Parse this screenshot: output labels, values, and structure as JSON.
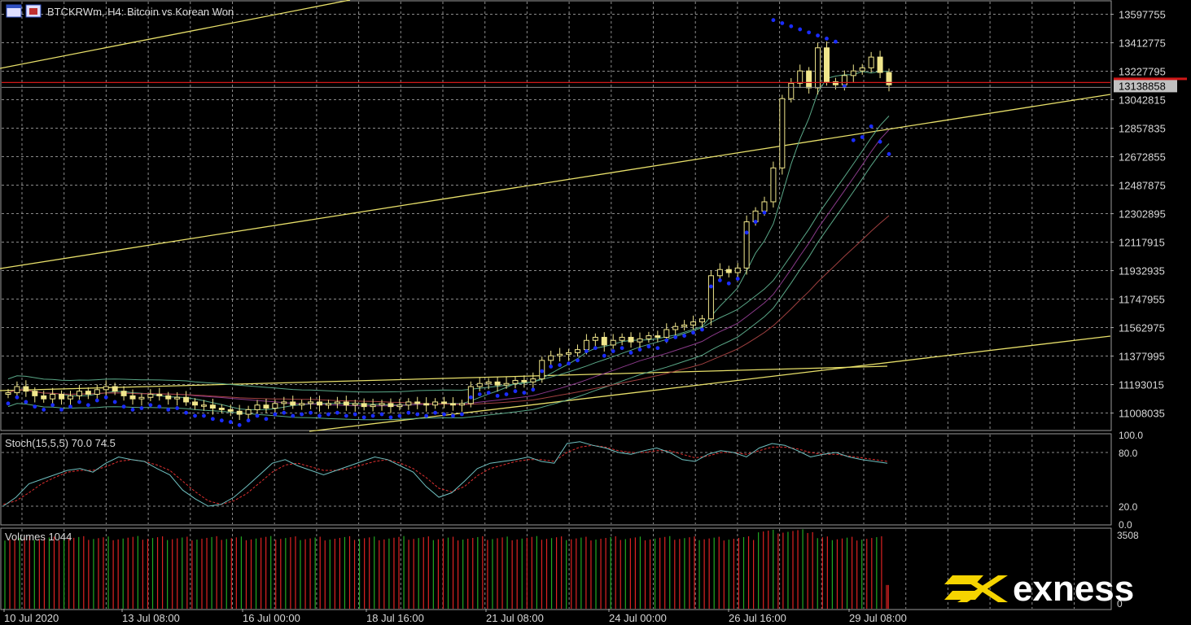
{
  "window": {
    "symbol_title": "BTCKRWm, H4:  Bitcoin vs Korean Won",
    "icons": [
      "chart-window-icon",
      "close-window-icon"
    ]
  },
  "brand": {
    "name": "exness",
    "logo_color": "#f5d400"
  },
  "colors": {
    "background": "#000000",
    "grid": "#8a8a8a",
    "candle": "#f0e68c",
    "parabolic_sar": "#1a2cff",
    "price_line": "#d01818",
    "bid_line": "#8a8a8a",
    "trendline": "#e8e06a",
    "bollinger": "#5aa888",
    "stoch_main": "#6fc0c0",
    "stoch_signal": "#e03030",
    "vol_up": "#22aa22",
    "vol_down": "#dd2222"
  },
  "chart_data": [
    {
      "type": "candlestick",
      "title": "BTCKRWm, H4:  Bitcoin vs Korean Won",
      "ylim": [
        10900000,
        13680000
      ],
      "y_ticks": [
        "13597755",
        "13412775",
        "13227795",
        "13042815",
        "12857835",
        "12672855",
        "12487875",
        "12302895",
        "12117915",
        "11932935",
        "11747955",
        "11562975",
        "11377995",
        "11193015",
        "11008035"
      ],
      "current_price_label": "13138858",
      "current_price": 13138858,
      "x_ticks": [
        "10 Jul 2020",
        "13 Jul 08:00",
        "16 Jul 00:00",
        "18 Jul 16:00",
        "21 Jul 08:00",
        "24 Jul 00:00",
        "26 Jul 16:00",
        "29 Jul 08:00"
      ],
      "series": [
        {
          "name": "price",
          "values": [
            11140000,
            11180000,
            11150000,
            11120000,
            11100000,
            11130000,
            11100000,
            11120000,
            11150000,
            11130000,
            11160000,
            11180000,
            11150000,
            11120000,
            11100000,
            11110000,
            11130000,
            11120000,
            11100000,
            11110000,
            11080000,
            11060000,
            11060000,
            11040000,
            11030000,
            11020000,
            11000000,
            11030000,
            11060000,
            11040000,
            11070000,
            11080000,
            11060000,
            11070000,
            11080000,
            11060000,
            11070000,
            11080000,
            11060000,
            11070000,
            11050000,
            11060000,
            11070000,
            11050000,
            11060000,
            11080000,
            11070000,
            11060000,
            11080000,
            11070000,
            11060000,
            11070000,
            11180000,
            11200000,
            11210000,
            11190000,
            11200000,
            11220000,
            11210000,
            11230000,
            11350000,
            11380000,
            11390000,
            11400000,
            11420000,
            11480000,
            11500000,
            11450000,
            11480000,
            11500000,
            11470000,
            11490000,
            11510000,
            11500000,
            11550000,
            11570000,
            11580000,
            11600000,
            11620000,
            11900000,
            11940000,
            11920000,
            11950000,
            12250000,
            12320000,
            12380000,
            12600000,
            13050000,
            13150000,
            13230000,
            13120000,
            13380000,
            13160000,
            13140000,
            13200000,
            13230000,
            13250000,
            13320000,
            13220000,
            13140000
          ]
        }
      ]
    },
    {
      "type": "line",
      "title": "Stoch(15,5,5) 70.0 74.5",
      "ylim": [
        0,
        100
      ],
      "y_ticks": [
        "100.0",
        "80.0",
        "20.0",
        "0.0"
      ],
      "series": [
        {
          "name": "main",
          "values": [
            20,
            30,
            45,
            50,
            55,
            60,
            62,
            58,
            68,
            75,
            72,
            70,
            62,
            55,
            38,
            28,
            20,
            22,
            30,
            42,
            55,
            68,
            72,
            65,
            60,
            55,
            60,
            65,
            70,
            75,
            72,
            65,
            58,
            42,
            30,
            35,
            48,
            62,
            68,
            70,
            72,
            75,
            70,
            68,
            90,
            92,
            88,
            85,
            80,
            78,
            82,
            85,
            80,
            72,
            70,
            78,
            82,
            80,
            75,
            85,
            90,
            88,
            82,
            75,
            78,
            80,
            75,
            72,
            70,
            68
          ]
        },
        {
          "name": "signal",
          "values": [
            22,
            26,
            35,
            45,
            52,
            58,
            60,
            60,
            64,
            70,
            72,
            70,
            66,
            60,
            48,
            36,
            26,
            22,
            26,
            34,
            46,
            58,
            66,
            68,
            64,
            60,
            60,
            62,
            66,
            70,
            72,
            68,
            62,
            52,
            40,
            36,
            42,
            54,
            62,
            66,
            70,
            72,
            72,
            70,
            80,
            86,
            88,
            86,
            82,
            80,
            80,
            82,
            82,
            78,
            74,
            76,
            80,
            80,
            78,
            82,
            86,
            86,
            84,
            80,
            78,
            78,
            76,
            74,
            72,
            70
          ]
        }
      ]
    },
    {
      "type": "bar",
      "title": "Volumes 1044",
      "ylim": [
        0,
        3508
      ],
      "y_ticks": [
        "3508",
        "0"
      ]
    }
  ]
}
